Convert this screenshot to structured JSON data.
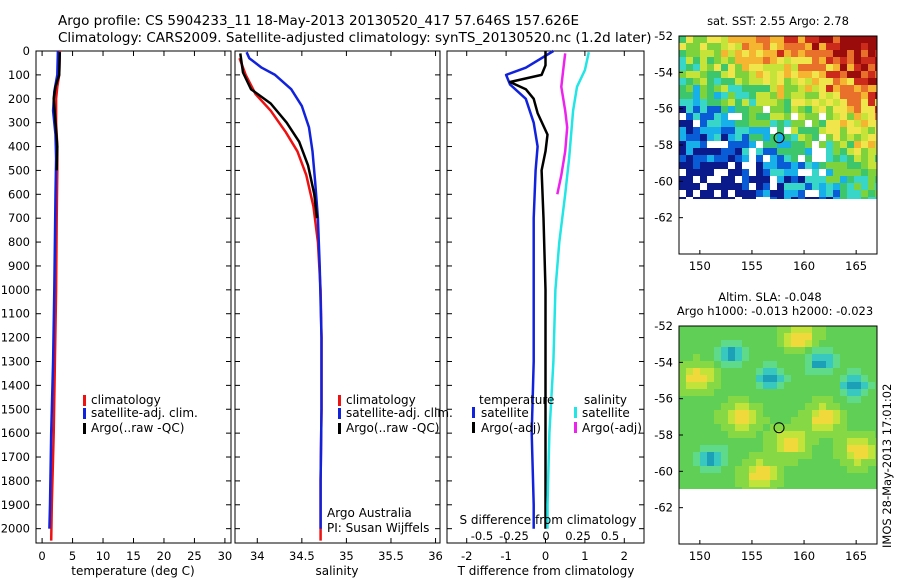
{
  "title": {
    "line1": "Argo profile: CS 5904233_11 18-May-2013 20130520_417 57.646S 157.626E",
    "line2": "Climatology: CARS2009. Satellite-adjusted climatology: synTS_20130520.nc (1.2d later)"
  },
  "timestamp": "IMOS 28-May-2013 17:01:02",
  "colors": {
    "climatology": "#ee1111",
    "satellite": "#1122dd",
    "argo": "#000000",
    "salinity_satellite": "#22e5e5",
    "salinity_argo": "#ee22ee"
  },
  "chart_data": [
    {
      "type": "line",
      "name": "temperature-panel",
      "xlabel": "temperature (deg C)",
      "ylabel": "",
      "xlim": [
        -1,
        31
      ],
      "ylim": [
        2060,
        0
      ],
      "xticks": [
        "0",
        "5",
        "10",
        "15",
        "20",
        "25",
        "30"
      ],
      "yticks": [
        "0",
        "100",
        "200",
        "300",
        "400",
        "500",
        "600",
        "700",
        "800",
        "900",
        "1000",
        "1100",
        "1200",
        "1300",
        "1400",
        "1500",
        "1600",
        "1700",
        "1800",
        "1900",
        "2000"
      ],
      "legend": [
        "climatology",
        "satellite-adj. clim.",
        "Argo(..raw -QC)"
      ],
      "legend_location": "center",
      "series": [
        {
          "name": "climatology",
          "color": "#ee1111",
          "points": [
            [
              2.9,
              0
            ],
            [
              2.8,
              100
            ],
            [
              2.5,
              150
            ],
            [
              2.3,
              200
            ],
            [
              2.3,
              300
            ],
            [
              2.5,
              400
            ],
            [
              2.5,
              500
            ],
            [
              2.4,
              700
            ],
            [
              2.3,
              1000
            ],
            [
              2.1,
              1300
            ],
            [
              1.9,
              1600
            ],
            [
              1.6,
              1900
            ],
            [
              1.5,
              2050
            ]
          ]
        },
        {
          "name": "satellite-adj. clim.",
          "color": "#1122dd",
          "points": [
            [
              2.6,
              0
            ],
            [
              2.5,
              100
            ],
            [
              2.0,
              170
            ],
            [
              1.8,
              250
            ],
            [
              2.2,
              350
            ],
            [
              2.3,
              450
            ],
            [
              2.2,
              600
            ],
            [
              2.1,
              800
            ],
            [
              2.0,
              1000
            ],
            [
              1.8,
              1300
            ],
            [
              1.5,
              1600
            ],
            [
              1.3,
              1900
            ],
            [
              1.2,
              2000
            ]
          ]
        },
        {
          "name": "Argo(..raw -QC)",
          "color": "#000000",
          "points": [
            [
              2.9,
              5
            ],
            [
              2.8,
              100
            ],
            [
              2.2,
              150
            ],
            [
              1.9,
              200
            ],
            [
              2.2,
              300
            ],
            [
              2.5,
              400
            ],
            [
              2.4,
              500
            ]
          ]
        }
      ]
    },
    {
      "type": "line",
      "name": "salinity-panel",
      "xlabel": "salinity",
      "ylabel": "",
      "xlim": [
        33.75,
        36.05
      ],
      "ylim": [
        2060,
        0
      ],
      "xticks": [
        "34",
        "34.5",
        "35",
        "35.5",
        "36"
      ],
      "legend": [
        "climatology",
        "satellite-adj. clim.",
        "Argo(..raw -QC)"
      ],
      "legend_location": "lower-center",
      "annotations": [
        "Argo Australia",
        "PI: Susan Wijffels"
      ],
      "series": [
        {
          "name": "climatology",
          "color": "#ee1111",
          "points": [
            [
              33.8,
              30
            ],
            [
              33.87,
              100
            ],
            [
              33.98,
              180
            ],
            [
              34.15,
              250
            ],
            [
              34.32,
              340
            ],
            [
              34.45,
              420
            ],
            [
              34.55,
              520
            ],
            [
              34.63,
              650
            ],
            [
              34.68,
              800
            ],
            [
              34.71,
              1000
            ],
            [
              34.72,
              1200
            ],
            [
              34.72,
              1500
            ],
            [
              34.71,
              1800
            ],
            [
              34.71,
              2050
            ]
          ]
        },
        {
          "name": "satellite-adj. clim.",
          "color": "#1122dd",
          "points": [
            [
              33.88,
              5
            ],
            [
              33.91,
              30
            ],
            [
              34.05,
              70
            ],
            [
              34.2,
              100
            ],
            [
              34.38,
              160
            ],
            [
              34.5,
              230
            ],
            [
              34.58,
              320
            ],
            [
              34.62,
              420
            ],
            [
              34.65,
              550
            ],
            [
              34.68,
              700
            ],
            [
              34.7,
              900
            ],
            [
              34.72,
              1200
            ],
            [
              34.72,
              1500
            ],
            [
              34.71,
              1800
            ],
            [
              34.71,
              2000
            ]
          ]
        },
        {
          "name": "Argo(..raw -QC)",
          "color": "#000000",
          "points": [
            [
              33.81,
              10
            ],
            [
              33.84,
              90
            ],
            [
              33.93,
              160
            ],
            [
              34.15,
              220
            ],
            [
              34.33,
              300
            ],
            [
              34.47,
              380
            ],
            [
              34.57,
              480
            ],
            [
              34.64,
              600
            ],
            [
              34.67,
              700
            ]
          ]
        }
      ]
    },
    {
      "type": "line",
      "name": "difference-panel",
      "xlabel": "T difference from climatology",
      "xlabel_top": "S difference from climatology",
      "ylabel": "",
      "xlim": [
        -2.5,
        2.5
      ],
      "ylim": [
        2060,
        0
      ],
      "xticks": [
        "-2",
        "-1",
        "0",
        "1",
        "2"
      ],
      "xticks_salinity": [
        "-0.5",
        "-0.25",
        "0",
        "0.25",
        "0.5"
      ],
      "legend_groups": [
        {
          "heading": "temperature",
          "items": [
            "satellite",
            "Argo(-adj)"
          ]
        },
        {
          "heading": "salinity",
          "items": [
            "satellite",
            "Argo(-adj)"
          ]
        }
      ],
      "legend_location": "lower-center",
      "series": [
        {
          "name": "temperature satellite",
          "color": "#1122dd",
          "points": [
            [
              0.2,
              0
            ],
            [
              -0.5,
              70
            ],
            [
              -1.0,
              100
            ],
            [
              -0.9,
              140
            ],
            [
              -0.5,
              200
            ],
            [
              -0.3,
              300
            ],
            [
              -0.2,
              400
            ],
            [
              -0.25,
              500
            ],
            [
              -0.3,
              700
            ],
            [
              -0.3,
              1000
            ],
            [
              -0.3,
              1300
            ],
            [
              -0.35,
              1600
            ],
            [
              -0.3,
              1900
            ],
            [
              -0.3,
              2000
            ]
          ]
        },
        {
          "name": "temperature Argo(-adj)",
          "color": "#000000",
          "points": [
            [
              0,
              0
            ],
            [
              0,
              60
            ],
            [
              -0.1,
              100
            ],
            [
              -0.9,
              130
            ],
            [
              -0.5,
              160
            ],
            [
              -0.3,
              200
            ],
            [
              -0.2,
              260
            ],
            [
              0.05,
              350
            ],
            [
              0,
              420
            ],
            [
              -0.1,
              500
            ],
            [
              -0.05,
              700
            ],
            [
              0,
              1000
            ],
            [
              0,
              1300
            ],
            [
              0,
              1600
            ],
            [
              0,
              2000
            ]
          ]
        },
        {
          "name": "salinity satellite",
          "color": "#22e5e5",
          "points": [
            [
              1.1,
              5
            ],
            [
              1.0,
              80
            ],
            [
              0.8,
              150
            ],
            [
              0.7,
              250
            ],
            [
              0.65,
              350
            ],
            [
              0.6,
              450
            ],
            [
              0.5,
              600
            ],
            [
              0.35,
              800
            ],
            [
              0.25,
              1000
            ],
            [
              0.2,
              1300
            ],
            [
              0.1,
              1600
            ],
            [
              0.05,
              1900
            ],
            [
              0.05,
              2000
            ]
          ]
        },
        {
          "name": "salinity Argo(-adj)",
          "color": "#ee22ee",
          "points": [
            [
              0.5,
              10
            ],
            [
              0.45,
              80
            ],
            [
              0.4,
              150
            ],
            [
              0.5,
              250
            ],
            [
              0.55,
              320
            ],
            [
              0.5,
              420
            ],
            [
              0.4,
              520
            ],
            [
              0.3,
              600
            ]
          ]
        }
      ]
    },
    {
      "type": "heatmap",
      "name": "sst-map",
      "title": "sat. SST: 2.55 Argo: 2.78",
      "xlim": [
        148,
        167
      ],
      "ylim": [
        -64,
        -52
      ],
      "xticks": [
        "150",
        "155",
        "160",
        "165"
      ],
      "yticks": [
        "-52",
        "-54",
        "-56",
        "-58",
        "-60",
        "-62"
      ],
      "marker": {
        "lon": 157.6,
        "lat": -57.6
      }
    },
    {
      "type": "heatmap",
      "name": "sla-map",
      "title": "Altim. SLA: -0.048",
      "subtitle": "Argo h1000: -0.013 h2000: -0.023",
      "xlim": [
        148,
        167
      ],
      "ylim": [
        -64,
        -52
      ],
      "xticks": [
        "150",
        "155",
        "160",
        "165"
      ],
      "yticks": [
        "-52",
        "-54",
        "-56",
        "-58",
        "-60",
        "-62"
      ],
      "marker": {
        "lon": 157.6,
        "lat": -57.6
      }
    }
  ]
}
